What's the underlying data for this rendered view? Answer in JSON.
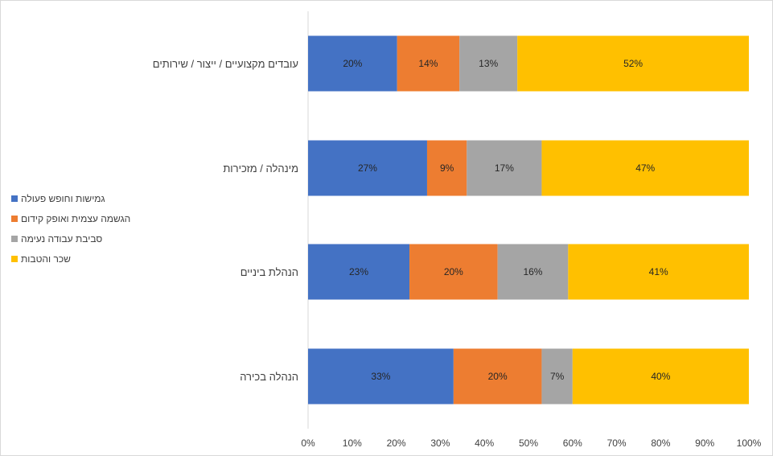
{
  "chart_data": {
    "type": "bar",
    "orientation": "horizontal",
    "stacked": "percent",
    "categories": [
      "עובדים מקצועיים / ייצור / שירותים",
      "מינהלה / מזכירות",
      "הנהלת ביניים",
      "הנהלה בכירה"
    ],
    "series": [
      {
        "name": "גמישות וחופש פעולה",
        "color": "#4472C4",
        "values": [
          20,
          27,
          23,
          33
        ],
        "labels": [
          "20%",
          "27%",
          "23%",
          "33%"
        ]
      },
      {
        "name": "הגשמה עצמית ואופק קידום",
        "color": "#ED7D31",
        "values": [
          14,
          9,
          20,
          20
        ],
        "labels": [
          "14%",
          "9%",
          "20%",
          "20%"
        ]
      },
      {
        "name": "סביבת עבודה נעימה",
        "color": "#A5A5A5",
        "values": [
          13,
          17,
          16,
          7
        ],
        "labels": [
          "13%",
          "17%",
          "16%",
          "7%"
        ]
      },
      {
        "name": "שכר והטבות",
        "color": "#FFC000",
        "values": [
          52,
          47,
          41,
          40
        ],
        "labels": [
          "52%",
          "47%",
          "41%",
          "40%"
        ]
      }
    ],
    "x_ticks": [
      "0%",
      "10%",
      "20%",
      "30%",
      "40%",
      "50%",
      "60%",
      "70%",
      "80%",
      "90%",
      "100%"
    ],
    "xlim": [
      0,
      100
    ],
    "grid": false,
    "legend_position": "left"
  }
}
